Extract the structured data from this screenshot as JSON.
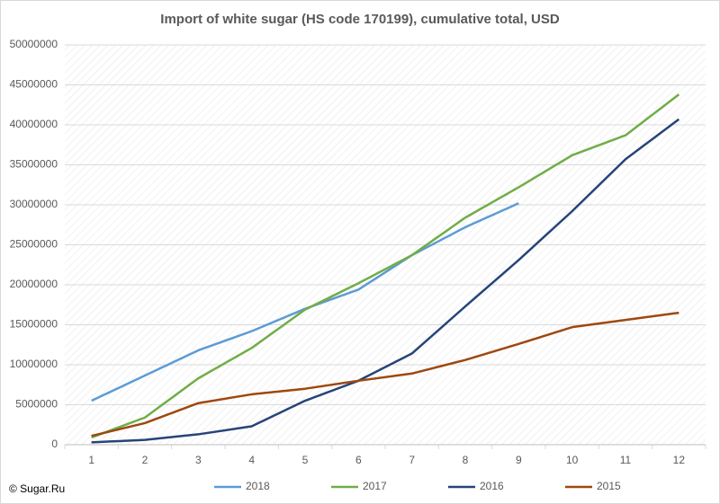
{
  "chart_data": {
    "type": "line",
    "title": "Import of white sugar (HS code 170199), cumulative total, USD",
    "source": "© Sugar.Ru",
    "categories": [
      1,
      2,
      3,
      4,
      5,
      6,
      7,
      8,
      9,
      10,
      11,
      12
    ],
    "series": [
      {
        "name": "2018",
        "color": "#5b9bd5",
        "values": [
          5500000,
          8650000,
          11800000,
          14200000,
          17000000,
          19400000,
          23700000,
          27200000,
          30200000,
          null,
          null,
          null
        ]
      },
      {
        "name": "2017",
        "color": "#70ad47",
        "values": [
          900000,
          3400000,
          8300000,
          12100000,
          16900000,
          20200000,
          23700000,
          28400000,
          32200000,
          36200000,
          38700000,
          43800000
        ]
      },
      {
        "name": "2016",
        "color": "#264478",
        "values": [
          300000,
          600000,
          1300000,
          2300000,
          5500000,
          8000000,
          11400000,
          17300000,
          23100000,
          29200000,
          35700000,
          40700000
        ]
      },
      {
        "name": "2015",
        "color": "#9e480e",
        "values": [
          1100000,
          2700000,
          5200000,
          6300000,
          7000000,
          8000000,
          8900000,
          10600000,
          12600000,
          14700000,
          15600000,
          16500000
        ]
      }
    ],
    "ylim": [
      0,
      50000000
    ],
    "yticks": [
      0,
      5000000,
      10000000,
      15000000,
      20000000,
      25000000,
      30000000,
      35000000,
      40000000,
      45000000,
      50000000
    ],
    "grid": true,
    "legend": "bottom"
  }
}
